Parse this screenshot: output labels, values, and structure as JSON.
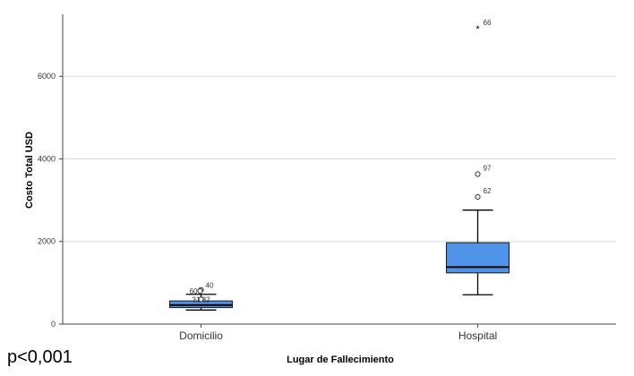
{
  "chart_data": {
    "type": "boxplot",
    "xlabel": "Lugar de Fallecimiento",
    "ylabel": "Costo Total USD",
    "ylim": [
      0,
      7500
    ],
    "yticks": [
      0,
      2000,
      4000,
      6000
    ],
    "grid": true,
    "categories": [
      "Domicilio",
      "Hospital"
    ],
    "boxes": [
      {
        "category": "Domicilio",
        "color": "#4f94e8",
        "whisker_low": 340,
        "q1": 400,
        "median": 460,
        "q3": 560,
        "whisker_high": 720,
        "outliers": [
          {
            "value": 830,
            "label": "40",
            "marker": "circle"
          },
          {
            "value": 800,
            "label": "60",
            "marker": "circle"
          },
          {
            "value": 600,
            "label": "31 32",
            "marker": "circle"
          }
        ]
      },
      {
        "category": "Hospital",
        "color": "#4f94e8",
        "whisker_low": 710,
        "q1": 1240,
        "median": 1380,
        "q3": 1970,
        "whisker_high": 2760,
        "outliers": [
          {
            "value": 3080,
            "label": "62",
            "marker": "circle"
          },
          {
            "value": 3630,
            "label": "97",
            "marker": "circle"
          },
          {
            "value": 7150,
            "label": "66",
            "marker": "star"
          }
        ]
      }
    ]
  },
  "annotation": "p<0,001"
}
